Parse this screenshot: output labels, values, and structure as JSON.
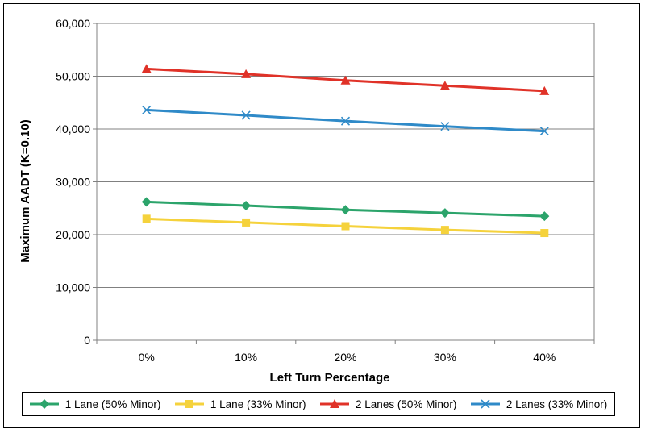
{
  "chart_data": {
    "type": "line",
    "title": "",
    "xlabel": "Left Turn Percentage",
    "ylabel": "Maximum AADT (K=0.10)",
    "categories": [
      "0%",
      "10%",
      "20%",
      "30%",
      "40%"
    ],
    "ylim": [
      0,
      60000
    ],
    "yticks": [
      "0",
      "10,000",
      "20,000",
      "30,000",
      "40,000",
      "50,000",
      "60,000"
    ],
    "grid": true,
    "legend_position": "bottom",
    "series": [
      {
        "name": "1 Lane (50% Minor)",
        "color": "#2ca46b",
        "marker": "diamond",
        "values": [
          26200,
          25500,
          24700,
          24100,
          23500
        ]
      },
      {
        "name": "1 Lane (33% Minor)",
        "color": "#f5d23c",
        "marker": "square",
        "values": [
          23000,
          22300,
          21600,
          20900,
          20300
        ]
      },
      {
        "name": "2 Lanes (50% Minor)",
        "color": "#e03228",
        "marker": "triangle",
        "values": [
          51400,
          50400,
          49200,
          48200,
          47200
        ]
      },
      {
        "name": "2 Lanes (33% Minor)",
        "color": "#2f8ac8",
        "marker": "x",
        "values": [
          43600,
          42600,
          41500,
          40500,
          39600
        ]
      }
    ]
  }
}
